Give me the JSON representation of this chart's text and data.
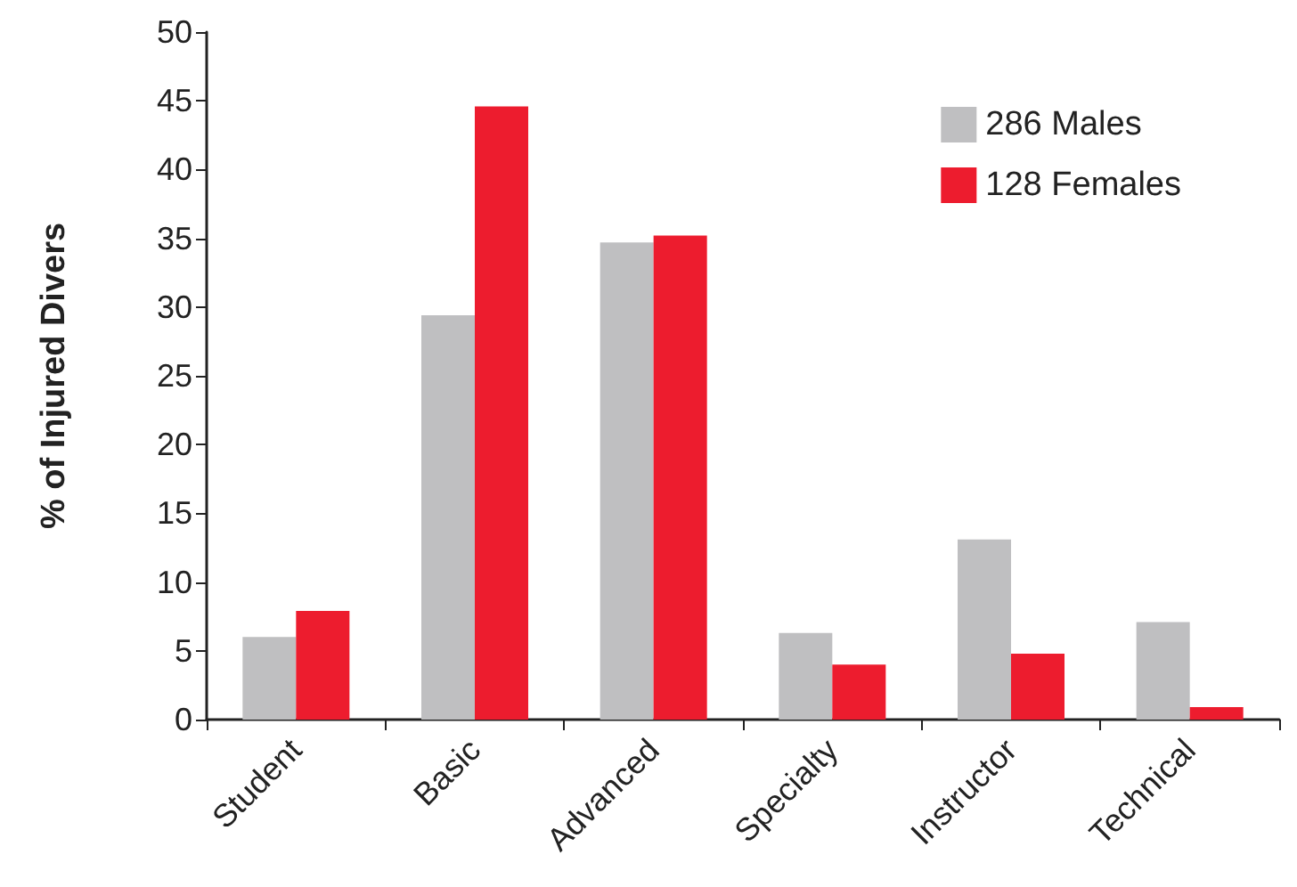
{
  "chart_data": {
    "type": "bar",
    "ylabel": "% of Injured Divers",
    "categories": [
      "Student",
      "Basic",
      "Advanced",
      "Specialty",
      "Instructor",
      "Technical"
    ],
    "series": [
      {
        "name": "286 Males",
        "color": "#bfbfc1",
        "values": [
          6.0,
          29.4,
          34.7,
          6.3,
          13.1,
          7.1
        ]
      },
      {
        "name": "128 Females",
        "color": "#ed1c2e",
        "values": [
          7.9,
          44.6,
          35.2,
          4.0,
          4.8,
          0.9
        ]
      }
    ],
    "ylim": [
      0,
      50
    ],
    "yticks": [
      0,
      5,
      10,
      15,
      20,
      25,
      30,
      35,
      40,
      45,
      50
    ],
    "grid": false,
    "legend": "top right"
  }
}
